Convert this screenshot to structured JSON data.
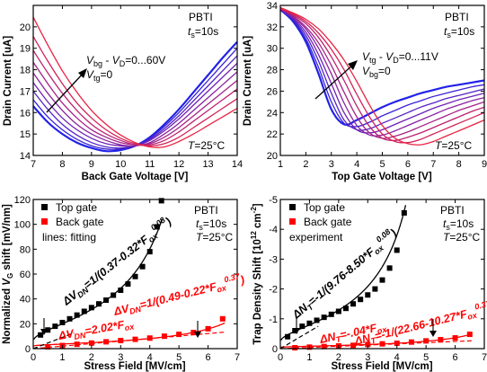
{
  "chart_data": [
    {
      "type": "line",
      "xlabel": "Back Gate Voltage [V]",
      "ylabel": "Drain Current [uA]",
      "xlim": [
        7,
        14
      ],
      "ylim": [
        14,
        21
      ],
      "xticks": [
        "7",
        "8",
        "9",
        "10",
        "11",
        "12",
        "13",
        "14"
      ],
      "yticks": [
        "14",
        "15",
        "16",
        "17",
        "18",
        "19",
        "20"
      ],
      "annotations": [
        "PBTI",
        "ts=10s",
        "Vbg-VD=0...60V",
        "Vtg=0",
        "T=25°C"
      ],
      "x": [
        7,
        7.5,
        8,
        8.5,
        9,
        9.5,
        10,
        10.5,
        11,
        11.5,
        12,
        12.5,
        13,
        13.5,
        14
      ],
      "series": [
        {
          "color": "#2222e8",
          "values": [
            16.3,
            15.55,
            15.0,
            14.6,
            14.35,
            14.2,
            14.25,
            14.45,
            14.85,
            15.45,
            16.15,
            16.95,
            17.75,
            18.55,
            19.3
          ]
        },
        {
          "color": "#3b22d6",
          "values": [
            16.6,
            15.8,
            15.2,
            14.75,
            14.45,
            14.3,
            14.3,
            14.45,
            14.8,
            15.35,
            16.0,
            16.75,
            17.5,
            18.25,
            19.0
          ]
        },
        {
          "color": "#5522c6",
          "values": [
            17.0,
            16.15,
            15.45,
            14.95,
            14.6,
            14.4,
            14.35,
            14.45,
            14.75,
            15.25,
            15.85,
            16.55,
            17.25,
            17.95,
            18.65
          ]
        },
        {
          "color": "#7022b4",
          "values": [
            17.4,
            16.5,
            15.75,
            15.2,
            14.8,
            14.55,
            14.45,
            14.45,
            14.7,
            15.15,
            15.7,
            16.35,
            17.0,
            17.65,
            18.3
          ]
        },
        {
          "color": "#8a22a0",
          "values": [
            17.85,
            16.9,
            16.1,
            15.45,
            15.0,
            14.7,
            14.5,
            14.45,
            14.6,
            15.0,
            15.5,
            16.1,
            16.7,
            17.3,
            17.9
          ]
        },
        {
          "color": "#a4228a",
          "values": [
            18.35,
            17.35,
            16.45,
            15.75,
            15.2,
            14.85,
            14.6,
            14.5,
            14.55,
            14.85,
            15.3,
            15.85,
            16.4,
            16.95,
            17.5
          ]
        },
        {
          "color": "#bc2270",
          "values": [
            18.9,
            17.85,
            16.9,
            16.1,
            15.45,
            15.0,
            14.7,
            14.5,
            14.5,
            14.7,
            15.1,
            15.6,
            16.1,
            16.6,
            17.1
          ]
        },
        {
          "color": "#d42258",
          "values": [
            19.55,
            18.4,
            17.35,
            16.45,
            15.75,
            15.2,
            14.8,
            14.55,
            14.45,
            14.55,
            14.85,
            15.3,
            15.75,
            16.2,
            16.65
          ]
        },
        {
          "color": "#ea2240",
          "values": [
            20.45,
            19.15,
            17.95,
            16.95,
            16.1,
            15.45,
            14.95,
            14.6,
            14.4,
            14.4,
            14.65,
            15.0,
            15.4,
            15.8,
            16.2
          ]
        }
      ]
    },
    {
      "type": "line",
      "xlabel": "Top Gate Voltage [V]",
      "ylabel": "Drain Current [uA]",
      "xlim": [
        1,
        9
      ],
      "ylim": [
        20,
        34
      ],
      "xticks": [
        "1",
        "2",
        "3",
        "4",
        "5",
        "6",
        "7",
        "8",
        "9"
      ],
      "yticks": [
        "20",
        "22",
        "24",
        "26",
        "28",
        "30",
        "32",
        "34"
      ],
      "annotations": [
        "PBTI",
        "ts=10s",
        "Vtg-VD=0...11V",
        "Vbg=0",
        "T=25°C"
      ],
      "x": [
        1,
        1.5,
        2,
        2.5,
        3,
        3.5,
        4,
        4.5,
        5,
        5.5,
        6,
        6.5,
        7,
        7.5,
        8,
        8.5,
        9
      ],
      "series": [
        {
          "color": "#2222e8",
          "values": [
            33.6,
            32.5,
            30.6,
            27.6,
            24.3,
            22.9,
            23.3,
            23.9,
            24.5,
            25.0,
            25.4,
            25.8,
            26.1,
            26.4,
            26.6,
            26.8,
            27.0
          ]
        },
        {
          "color": "#3b22d6",
          "values": [
            33.6,
            32.6,
            30.9,
            28.2,
            25.0,
            23.0,
            22.7,
            23.1,
            23.7,
            24.2,
            24.7,
            25.1,
            25.5,
            25.8,
            26.1,
            26.4,
            26.6
          ]
        },
        {
          "color": "#5522c6",
          "values": [
            33.6,
            32.7,
            31.2,
            28.8,
            25.8,
            23.3,
            22.4,
            22.5,
            23.0,
            23.5,
            24.0,
            24.5,
            24.9,
            25.3,
            25.6,
            25.9,
            26.2
          ]
        },
        {
          "color": "#7022b4",
          "values": [
            33.6,
            32.8,
            31.5,
            29.4,
            26.7,
            24.0,
            22.4,
            22.1,
            22.4,
            22.9,
            23.4,
            23.9,
            24.4,
            24.8,
            25.2,
            25.5,
            25.8
          ]
        },
        {
          "color": "#8a22a0",
          "values": [
            33.7,
            32.9,
            31.8,
            30.0,
            27.6,
            24.9,
            22.8,
            21.9,
            21.9,
            22.3,
            22.8,
            23.3,
            23.8,
            24.3,
            24.7,
            25.1,
            25.4
          ]
        },
        {
          "color": "#a4228a",
          "values": [
            33.7,
            33.0,
            32.0,
            30.5,
            28.4,
            25.9,
            23.6,
            22.1,
            21.6,
            21.8,
            22.2,
            22.7,
            23.2,
            23.7,
            24.2,
            24.6,
            25.0
          ]
        },
        {
          "color": "#bc2270",
          "values": [
            33.7,
            33.1,
            32.3,
            31.0,
            29.2,
            27.0,
            24.6,
            22.7,
            21.6,
            21.4,
            21.7,
            22.1,
            22.6,
            23.1,
            23.6,
            24.1,
            24.5
          ]
        },
        {
          "color": "#d42258",
          "values": [
            33.7,
            33.2,
            32.5,
            31.4,
            29.9,
            28.0,
            25.7,
            23.6,
            22.0,
            21.3,
            21.2,
            21.5,
            22.0,
            22.5,
            23.0,
            23.5,
            24.0
          ]
        },
        {
          "color": "#ea2240",
          "values": [
            33.8,
            33.3,
            32.7,
            31.8,
            30.5,
            28.9,
            26.9,
            24.7,
            22.8,
            21.6,
            21.1,
            21.0,
            21.3,
            21.8,
            22.3,
            22.8,
            23.3
          ]
        }
      ]
    },
    {
      "type": "scatter",
      "xlabel": "Stress Field [MV/cm]",
      "ylabel": "Normalized VG shift [mV/nm]",
      "xlim": [
        0,
        7
      ],
      "ylim": [
        0,
        120
      ],
      "xticks": [
        "0",
        "1",
        "2",
        "3",
        "4",
        "5",
        "6",
        "7"
      ],
      "yticks": [
        "0",
        "20",
        "40",
        "60",
        "80",
        "100",
        "120"
      ],
      "annotations": [
        "PBTI",
        "ts=10s",
        "T=25°C",
        "lines: fitting"
      ],
      "legend": [
        "Top gate",
        "Back gate"
      ],
      "fit_labels": [
        "ΔVDN=1/(0.37-0.32*Fox0.08)",
        "ΔVDN=2.02*Fox",
        "ΔVDN=1/(0.49-0.22*Fox0.37)"
      ],
      "series": [
        {
          "name": "Top gate",
          "color": "#000000",
          "x": [
            0.25,
            0.5,
            0.75,
            1.0,
            1.25,
            1.5,
            1.75,
            2.0,
            2.25,
            2.5,
            2.75,
            3.0,
            3.25,
            3.5,
            3.75,
            4.0,
            4.25,
            4.4
          ],
          "y": [
            11,
            15,
            18,
            21,
            24,
            27,
            30,
            33,
            36,
            39,
            43,
            47,
            52,
            58,
            66,
            78,
            98,
            119
          ]
        },
        {
          "name": "Back gate",
          "color": "#ff0000",
          "x": [
            0.5,
            1.0,
            1.5,
            2.0,
            2.5,
            3.0,
            3.5,
            4.0,
            4.5,
            5.0,
            5.5,
            6.0,
            6.5
          ],
          "y": [
            1.5,
            2.5,
            3.5,
            4.5,
            5.5,
            6.5,
            7.5,
            8.5,
            10,
            11.5,
            13,
            16,
            24
          ]
        }
      ]
    },
    {
      "type": "scatter",
      "xlabel": "Stress Field [MV/cm]",
      "ylabel": "Trap Density Shift [10^12 cm^-2]",
      "xlim": [
        0,
        7
      ],
      "ylim": [
        -5,
        0
      ],
      "xticks": [
        "0",
        "1",
        "2",
        "3",
        "4",
        "5",
        "6",
        "7"
      ],
      "yticks": [
        "-5",
        "-4",
        "-3",
        "-2",
        "-1",
        "0"
      ],
      "annotations": [
        "PBTI",
        "ts=10s",
        "T=25°C",
        "experiment"
      ],
      "legend": [
        "Top gate",
        "Back gate"
      ],
      "fit_labels": [
        "ΔNT=-1/(9.76-8.50*Fox0.08)",
        "ΔNT=-.04*Fox",
        "ΔNT=-1/(22.66-10.27*Fox0.37)"
      ],
      "series": [
        {
          "name": "Top gate",
          "color": "#000000",
          "x": [
            0.25,
            0.5,
            0.75,
            1.0,
            1.25,
            1.5,
            1.75,
            2.0,
            2.25,
            2.5,
            2.75,
            3.0,
            3.25,
            3.5,
            3.75,
            4.0,
            4.25
          ],
          "y": [
            -0.4,
            -0.6,
            -0.75,
            -0.85,
            -0.95,
            -1.05,
            -1.15,
            -1.25,
            -1.35,
            -1.5,
            -1.65,
            -1.8,
            -2.0,
            -2.3,
            -2.7,
            -3.3,
            -4.55
          ]
        },
        {
          "name": "Back gate",
          "color": "#ff0000",
          "x": [
            0.5,
            1.0,
            1.5,
            2.0,
            2.5,
            3.0,
            3.5,
            4.0,
            4.5,
            5.0,
            5.5,
            6.0,
            6.5
          ],
          "y": [
            -0.03,
            -0.05,
            -0.07,
            -0.09,
            -0.11,
            -0.14,
            -0.16,
            -0.18,
            -0.22,
            -0.26,
            -0.3,
            -0.36,
            -0.48
          ]
        }
      ]
    }
  ]
}
